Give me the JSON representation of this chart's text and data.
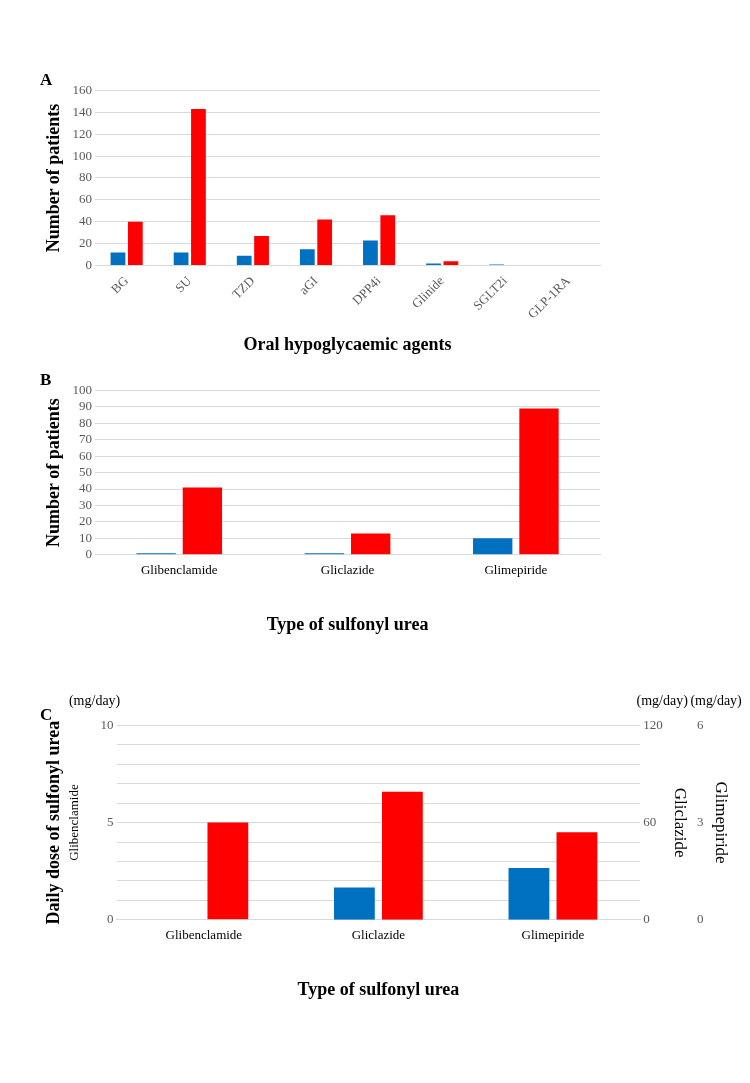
{
  "chart_data": [
    {
      "type": "bar",
      "title": "A",
      "xlabel": "Oral hypoglycaemic agents",
      "ylabel": "Number of patients",
      "categories": [
        "BG",
        "SU",
        "TZD",
        "aGI",
        "DPP4i",
        "Glinide",
        "SGLT2i",
        "GLP-1RA"
      ],
      "series": [
        {
          "color": "#0070c0",
          "values": [
            12,
            12,
            9,
            15,
            23,
            2,
            1,
            0
          ]
        },
        {
          "color": "#ff0000",
          "values": [
            40,
            143,
            27,
            42,
            46,
            4,
            0,
            0
          ]
        }
      ],
      "ylim": [
        0,
        160
      ],
      "yticks": [
        0,
        20,
        40,
        60,
        80,
        100,
        120,
        140,
        160
      ],
      "grid": "y",
      "legend": false
    },
    {
      "type": "bar",
      "title": "B",
      "xlabel": "Type of sulfonyl urea",
      "ylabel": "Number of patients",
      "categories": [
        "Glibenclamide",
        "Gliclazide",
        "Glimepiride"
      ],
      "series": [
        {
          "color": "#0070c0",
          "values": [
            1,
            1,
            10
          ]
        },
        {
          "color": "#ff0000",
          "values": [
            41,
            13,
            89
          ]
        }
      ],
      "ylim": [
        0,
        100
      ],
      "yticks": [
        0,
        10,
        20,
        30,
        40,
        50,
        60,
        70,
        80,
        90,
        100
      ],
      "grid": "y",
      "legend": false
    },
    {
      "type": "bar",
      "title": "C",
      "xlabel": "Type of sulfonyl urea",
      "ylabel": "Daily dose of sulfonyl urea",
      "y2label": "Gliclazide",
      "y3label": "Glimepiride",
      "categories": [
        "Glibenclamide",
        "Gliclazide",
        "Glimepiride"
      ],
      "series": [
        {
          "color": "#0070c0",
          "values": [
            0,
            null,
            null
          ],
          "axis": "y"
        },
        {
          "color": "#ff0000",
          "values": [
            5,
            null,
            null
          ],
          "axis": "y"
        },
        {
          "color": "#0070c0",
          "values": [
            null,
            20,
            null
          ],
          "axis": "y2"
        },
        {
          "color": "#ff0000",
          "values": [
            null,
            79,
            null
          ],
          "axis": "y2"
        },
        {
          "color": "#0070c0",
          "values": [
            null,
            null,
            1.6
          ],
          "axis": "y3"
        },
        {
          "color": "#ff0000",
          "values": [
            null,
            null,
            2.7
          ],
          "axis": "y3"
        }
      ],
      "ylim": [
        0,
        10
      ],
      "yticks": [
        0,
        {
          "value": 1,
          "label": null
        },
        {
          "value": 2,
          "label": null
        },
        {
          "value": 3,
          "label": null
        },
        {
          "value": 4,
          "label": null
        },
        5,
        {
          "value": 6,
          "label": null
        },
        {
          "value": 7,
          "label": null
        },
        {
          "value": 8,
          "label": null
        },
        {
          "value": 9,
          "label": null
        },
        10
      ],
      "y2lim": [
        0,
        120
      ],
      "y2ticks": [
        0,
        60,
        120
      ],
      "y3lim": [
        0,
        6
      ],
      "y3ticks": [
        0,
        3,
        6
      ],
      "grid": "y",
      "legend": false,
      "annotations": [
        "(mg/day)",
        "(mg/day)",
        "(mg/day)",
        "Glibenclamide"
      ]
    }
  ]
}
